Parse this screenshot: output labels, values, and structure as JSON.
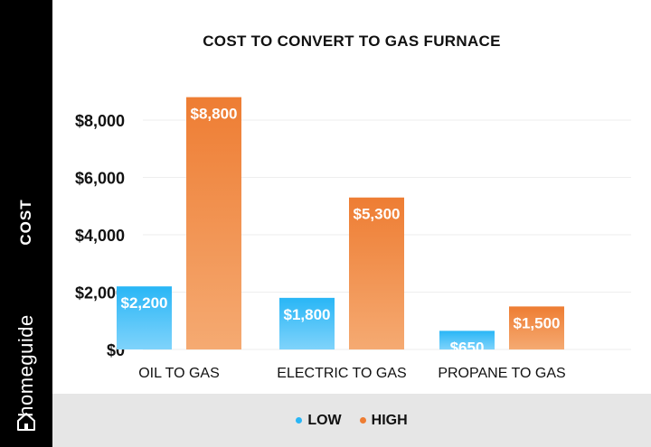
{
  "branding": {
    "name": "homeguide",
    "icon": "house-icon"
  },
  "colors": {
    "sidebar": "#000000",
    "low_top": "#29b6f6",
    "low_bottom": "#7fd3fb",
    "high_top": "#ee7d33",
    "high_bottom": "#f5aa72",
    "legend_bg": "#e6e6e6"
  },
  "chart_data": {
    "type": "bar",
    "title": "COST TO CONVERT TO GAS FURNACE",
    "ylabel": "COST",
    "xlabel": "",
    "categories": [
      "OIL TO GAS",
      "ELECTRIC TO GAS",
      "PROPANE TO GAS"
    ],
    "series": [
      {
        "name": "LOW",
        "values": [
          2200,
          1800,
          650
        ],
        "labels": [
          "$2,200",
          "$1,800",
          "$650"
        ]
      },
      {
        "name": "HIGH",
        "values": [
          8800,
          5300,
          1500
        ],
        "labels": [
          "$8,800",
          "$5,300",
          "$1,500"
        ]
      }
    ],
    "ylim": [
      0,
      8000
    ],
    "yticks": [
      0,
      2000,
      4000,
      6000,
      8000
    ],
    "ytick_labels": [
      "$0",
      "$2,000",
      "$4,000",
      "$6,000",
      "$8,000"
    ],
    "grid": true,
    "legend_position": "bottom"
  }
}
